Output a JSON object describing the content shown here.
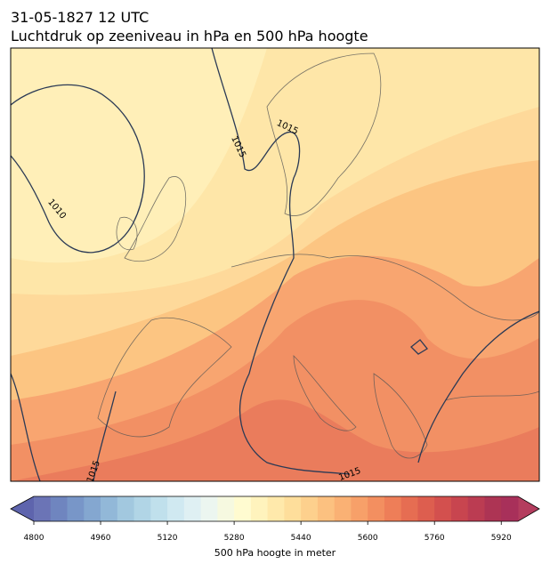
{
  "header": {
    "title": "31-05-1827 12 UTC",
    "subtitle": "Luchtdruk op zeeniveau in hPa en 500 hPa hoogte"
  },
  "map": {
    "contour_labels": [
      "1010",
      "1015",
      "1015",
      "1015",
      "1015"
    ]
  },
  "colorbar": {
    "label": "500 hPa hoogte in meter",
    "ticks": [
      4800,
      4960,
      5120,
      5280,
      5440,
      5600,
      5760,
      5920
    ],
    "levels": [
      4800,
      4840,
      4880,
      4920,
      4960,
      5000,
      5040,
      5080,
      5120,
      5160,
      5200,
      5240,
      5280,
      5320,
      5360,
      5400,
      5440,
      5480,
      5520,
      5560,
      5600,
      5640,
      5680,
      5720,
      5760,
      5800,
      5840,
      5880,
      5920,
      5960
    ],
    "colors": [
      "#6b74b6",
      "#6f85bf",
      "#7896c8",
      "#84a7d0",
      "#92b8d8",
      "#a2c8df",
      "#b1d5e6",
      "#c0e0ec",
      "#d0e9f1",
      "#dff0f3",
      "#ecf6f0",
      "#f6f9e0",
      "#fffbd0",
      "#fff3bd",
      "#ffe9ab",
      "#fede9b",
      "#fdd08d",
      "#fcc180",
      "#fab174",
      "#f7a069",
      "#f38f60",
      "#ee7e58",
      "#e66d52",
      "#dd5e4f",
      "#d3504e",
      "#c8454f",
      "#bb3c52",
      "#ad3454",
      "#a8305a"
    ],
    "under_color": "#5e64ad",
    "over_color": "#b43d5e"
  }
}
